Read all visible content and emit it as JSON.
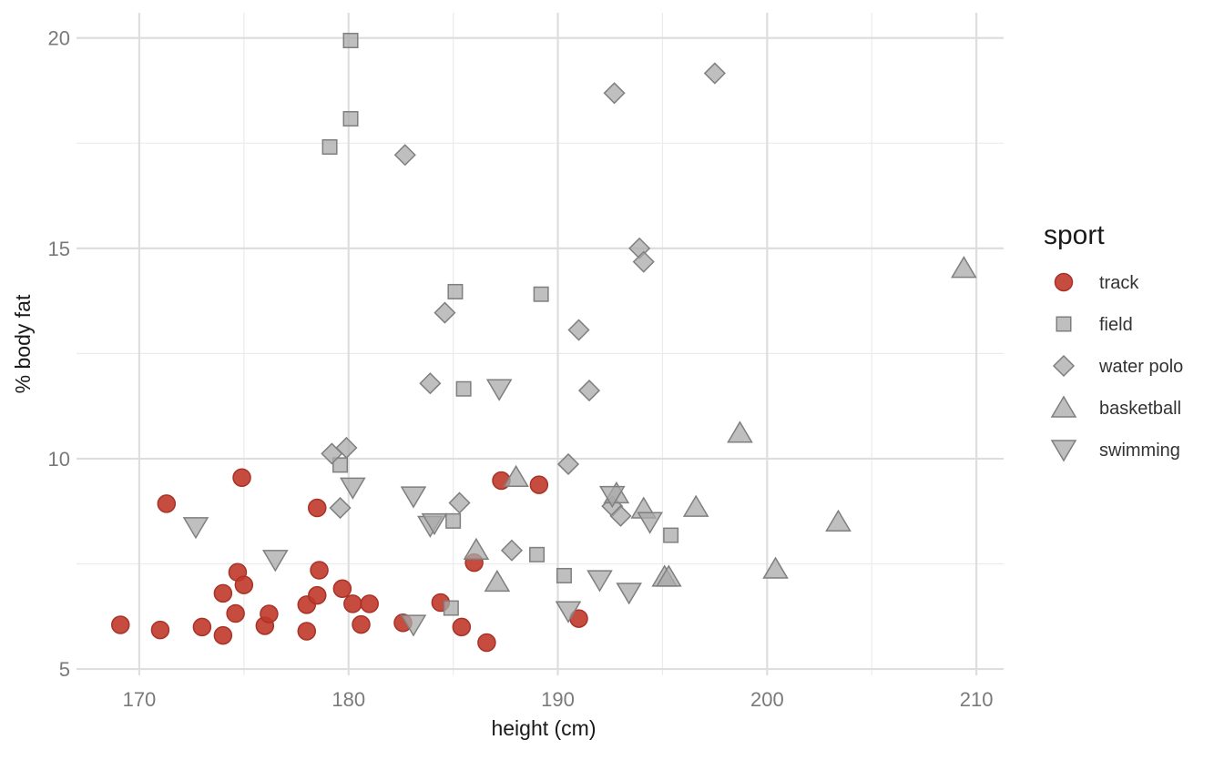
{
  "chart_data": {
    "type": "scatter",
    "title": "",
    "xlabel": "height (cm)",
    "ylabel": "% body fat",
    "xlim": [
      167,
      211.3
    ],
    "ylim": [
      4.85,
      20.6
    ],
    "x_ticks": [
      170,
      180,
      190,
      200,
      210
    ],
    "y_ticks": [
      5,
      10,
      15,
      20
    ],
    "x_tick_labels": [
      "170",
      "180",
      "190",
      "200",
      "210"
    ],
    "y_tick_labels": [
      "5",
      "10",
      "15",
      "20"
    ],
    "grid": true,
    "legend": {
      "title": "sport",
      "position": "right"
    },
    "series": [
      {
        "name": "track",
        "shape": "circle",
        "color": "#C0392B",
        "points": [
          {
            "x": 169.1,
            "y": 6.05
          },
          {
            "x": 171.0,
            "y": 5.93
          },
          {
            "x": 171.3,
            "y": 8.93
          },
          {
            "x": 173.0,
            "y": 6.0
          },
          {
            "x": 174.0,
            "y": 5.8
          },
          {
            "x": 174.0,
            "y": 6.8
          },
          {
            "x": 174.6,
            "y": 6.32
          },
          {
            "x": 174.7,
            "y": 7.3
          },
          {
            "x": 174.9,
            "y": 9.55
          },
          {
            "x": 175.0,
            "y": 7.0
          },
          {
            "x": 176.0,
            "y": 6.03
          },
          {
            "x": 176.2,
            "y": 6.31
          },
          {
            "x": 178.0,
            "y": 5.9
          },
          {
            "x": 178.0,
            "y": 6.53
          },
          {
            "x": 178.5,
            "y": 6.75
          },
          {
            "x": 178.5,
            "y": 8.83
          },
          {
            "x": 178.6,
            "y": 7.35
          },
          {
            "x": 179.7,
            "y": 6.91
          },
          {
            "x": 180.2,
            "y": 6.55
          },
          {
            "x": 180.6,
            "y": 6.06
          },
          {
            "x": 181.0,
            "y": 6.55
          },
          {
            "x": 182.6,
            "y": 6.1
          },
          {
            "x": 184.4,
            "y": 6.58
          },
          {
            "x": 185.4,
            "y": 6.0
          },
          {
            "x": 186.0,
            "y": 7.53
          },
          {
            "x": 186.6,
            "y": 5.63
          },
          {
            "x": 187.3,
            "y": 9.48
          },
          {
            "x": 189.1,
            "y": 9.38
          },
          {
            "x": 191.0,
            "y": 6.2
          }
        ]
      },
      {
        "name": "field",
        "shape": "square",
        "color": "#A9A9A9",
        "points": [
          {
            "x": 179.1,
            "y": 17.41
          },
          {
            "x": 179.6,
            "y": 9.85
          },
          {
            "x": 180.1,
            "y": 19.94
          },
          {
            "x": 180.1,
            "y": 18.08
          },
          {
            "x": 184.9,
            "y": 6.45
          },
          {
            "x": 185.0,
            "y": 8.52
          },
          {
            "x": 185.1,
            "y": 13.97
          },
          {
            "x": 185.5,
            "y": 11.66
          },
          {
            "x": 189.0,
            "y": 7.72
          },
          {
            "x": 189.2,
            "y": 13.91
          },
          {
            "x": 190.3,
            "y": 7.22
          },
          {
            "x": 195.4,
            "y": 8.18
          }
        ]
      },
      {
        "name": "water polo",
        "shape": "diamond",
        "color": "#A9A9A9",
        "points": [
          {
            "x": 179.2,
            "y": 10.12
          },
          {
            "x": 179.6,
            "y": 8.83
          },
          {
            "x": 179.9,
            "y": 10.26
          },
          {
            "x": 182.7,
            "y": 17.22
          },
          {
            "x": 183.9,
            "y": 11.79
          },
          {
            "x": 184.6,
            "y": 13.47
          },
          {
            "x": 185.3,
            "y": 8.95
          },
          {
            "x": 187.8,
            "y": 7.82
          },
          {
            "x": 190.5,
            "y": 9.87
          },
          {
            "x": 191.0,
            "y": 13.06
          },
          {
            "x": 191.5,
            "y": 11.62
          },
          {
            "x": 192.6,
            "y": 8.87
          },
          {
            "x": 192.7,
            "y": 18.69
          },
          {
            "x": 193.0,
            "y": 8.64
          },
          {
            "x": 193.9,
            "y": 15.0
          },
          {
            "x": 194.1,
            "y": 14.68
          },
          {
            "x": 197.5,
            "y": 19.16
          }
        ]
      },
      {
        "name": "basketball",
        "shape": "triangle-up",
        "color": "#A9A9A9",
        "points": [
          {
            "x": 186.1,
            "y": 7.83
          },
          {
            "x": 187.1,
            "y": 7.07
          },
          {
            "x": 188.0,
            "y": 9.56
          },
          {
            "x": 192.8,
            "y": 9.17
          },
          {
            "x": 194.1,
            "y": 8.81
          },
          {
            "x": 195.1,
            "y": 7.19
          },
          {
            "x": 195.3,
            "y": 7.19
          },
          {
            "x": 196.6,
            "y": 8.85
          },
          {
            "x": 198.7,
            "y": 10.61
          },
          {
            "x": 200.4,
            "y": 7.38
          },
          {
            "x": 203.4,
            "y": 8.5
          },
          {
            "x": 209.4,
            "y": 14.53
          }
        ]
      },
      {
        "name": "swimming",
        "shape": "triangle-down",
        "color": "#A9A9A9",
        "points": [
          {
            "x": 172.7,
            "y": 8.38
          },
          {
            "x": 176.5,
            "y": 7.6
          },
          {
            "x": 180.2,
            "y": 9.32
          },
          {
            "x": 183.1,
            "y": 6.06
          },
          {
            "x": 183.1,
            "y": 9.11
          },
          {
            "x": 183.9,
            "y": 8.41
          },
          {
            "x": 184.1,
            "y": 8.47
          },
          {
            "x": 187.2,
            "y": 11.66
          },
          {
            "x": 190.5,
            "y": 6.38
          },
          {
            "x": 192.0,
            "y": 7.12
          },
          {
            "x": 192.6,
            "y": 9.12
          },
          {
            "x": 193.4,
            "y": 6.82
          },
          {
            "x": 194.4,
            "y": 8.5
          }
        ]
      }
    ]
  }
}
